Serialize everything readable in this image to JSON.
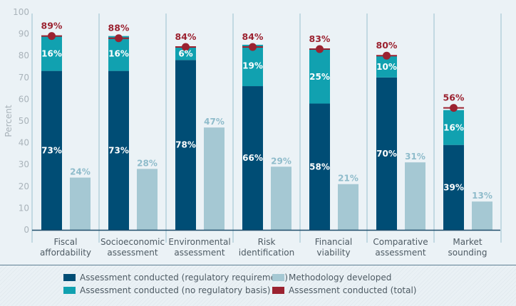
{
  "colors": {
    "regulatory": "#004d75",
    "no_regulatory": "#11a1b0",
    "methodology": "#a5c8d3",
    "total": "#9b2230",
    "gridline": "#c2d9e2",
    "axis": "#1f4d6b"
  },
  "chart_data": {
    "type": "bar",
    "title": "",
    "xlabel": "",
    "ylabel": "Percent",
    "ylim": [
      0,
      100
    ],
    "yticks": [
      0,
      10,
      20,
      30,
      40,
      50,
      60,
      70,
      80,
      90,
      100
    ],
    "grid": false,
    "categories": [
      [
        "Fiscal",
        "affordability"
      ],
      [
        "Socioeconomic",
        "assessment"
      ],
      [
        "Environmental",
        "assessment"
      ],
      [
        "Risk",
        "identification"
      ],
      [
        "Financial",
        "viability"
      ],
      [
        "Comparative",
        "assessment"
      ],
      [
        "Market",
        "sounding"
      ]
    ],
    "series": [
      {
        "name": "Assessment conducted (regulatory requirement)",
        "key": "regulatory",
        "stack": "conducted",
        "values": [
          73,
          73,
          78,
          66,
          58,
          70,
          39
        ]
      },
      {
        "name": "Assessment conducted (no regulatory basis)",
        "key": "no_regulatory",
        "stack": "conducted",
        "values": [
          16,
          16,
          6,
          19,
          25,
          10,
          16
        ]
      },
      {
        "name": "Methodology developed",
        "key": "methodology",
        "stack": "methodology",
        "values": [
          24,
          28,
          47,
          29,
          21,
          31,
          13
        ]
      },
      {
        "name": "Assessment conducted (total)",
        "key": "total",
        "type": "marker",
        "values": [
          89,
          88,
          84,
          84,
          83,
          80,
          56
        ]
      }
    ],
    "legend": {
      "placement": "bottom",
      "items": [
        {
          "label": "Assessment conducted (regulatory requirement)",
          "key": "regulatory"
        },
        {
          "label": "Assessment conducted (no regulatory basis)",
          "key": "no_regulatory"
        },
        {
          "label": "Methodology developed",
          "key": "methodology"
        },
        {
          "label": "Assessment conducted (total)",
          "key": "total"
        }
      ]
    }
  }
}
